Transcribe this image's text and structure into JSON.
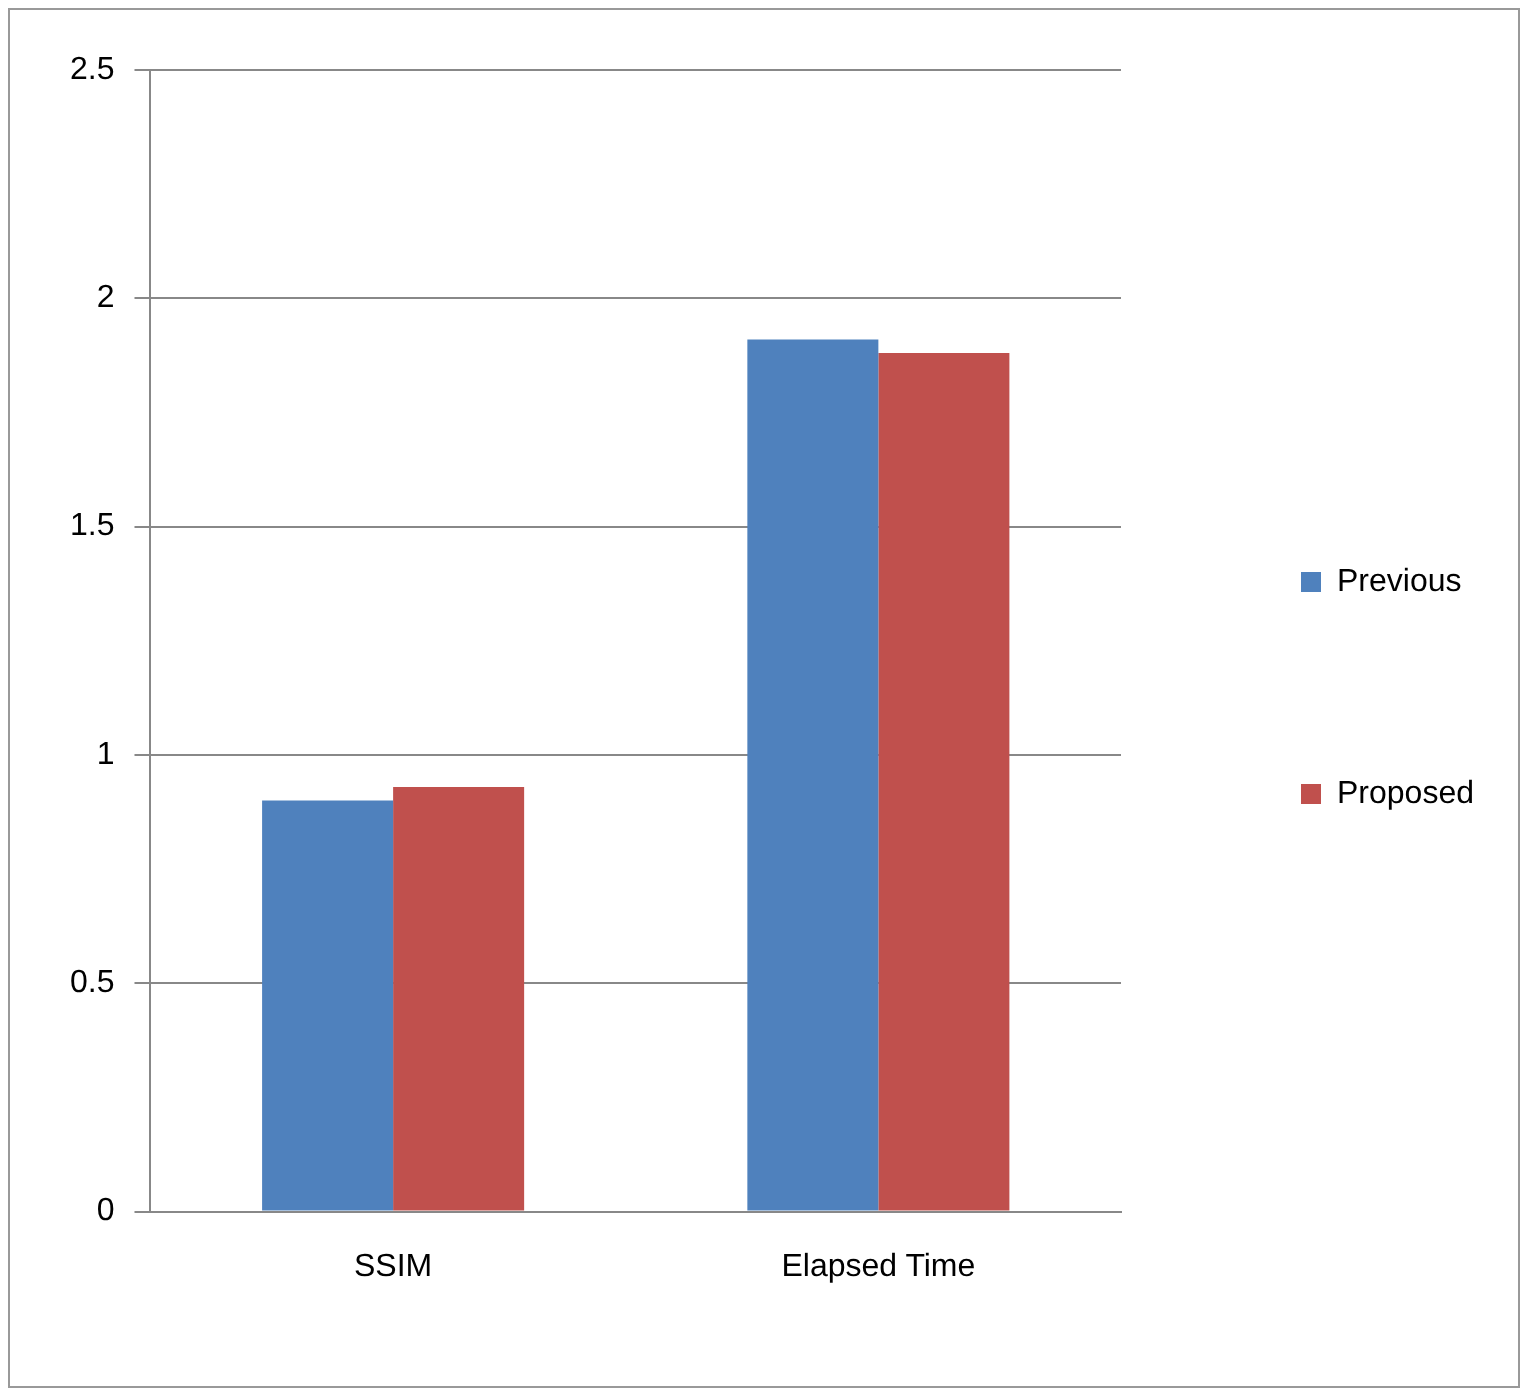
{
  "chart_data": {
    "type": "bar",
    "categories": [
      "SSIM",
      "Elapsed Time"
    ],
    "series": [
      {
        "name": "Previous",
        "color": "#4f81bd",
        "values": [
          0.9,
          1.91
        ]
      },
      {
        "name": "Proposed",
        "color": "#c0504d",
        "values": [
          0.93,
          1.88
        ]
      }
    ],
    "ylim": [
      0,
      2.5
    ],
    "yticks": [
      0,
      0.5,
      1,
      1.5,
      2,
      2.5
    ],
    "grid": "y",
    "legend": "right"
  }
}
